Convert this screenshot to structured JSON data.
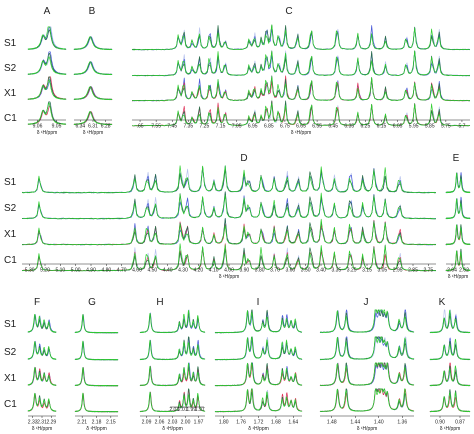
{
  "figure": {
    "panels": [
      {
        "id": "A",
        "ticks": [
          "9.06",
          "9.05"
        ],
        "xlabel": "δ ¹H/ppm"
      },
      {
        "id": "B",
        "ticks": [
          "6.34",
          "6.31",
          "6.28"
        ],
        "xlabel": "δ ¹H/ppm"
      },
      {
        "id": "C",
        "ticks": [
          ".65",
          "7.55",
          "7.45",
          "7.35",
          "7.25",
          "7.15",
          "7.05",
          "6.95",
          "6.85",
          "6.75",
          "6.65",
          "6.55",
          "6.45",
          "6.35",
          "6.25",
          "6.15",
          "6.05",
          "5.95",
          "5.85",
          "5.75",
          "5.7"
        ],
        "xlabel": "δ ¹H/ppm"
      },
      {
        "id": "D",
        "ticks": [
          "5.30",
          "5.20",
          "5.10",
          "5.00",
          "4.90",
          "4.80",
          "4.70",
          "4.60",
          "4.50",
          "4.40",
          "4.30",
          "4.20",
          "4.10",
          "4.00",
          "3.90",
          "3.80",
          "3.70",
          "3.60",
          "3.50",
          "3.40",
          "3.35",
          "3.25",
          "3.15",
          "3.05",
          "2.95",
          "2.85",
          "2.75"
        ],
        "xlabel": "δ ¹H/ppm"
      },
      {
        "id": "E",
        "ticks": [
          "2.64",
          "2.62"
        ],
        "xlabel": "δ ¹H/ppm"
      },
      {
        "id": "F",
        "ticks": [
          "2.33",
          "2.31",
          "2.29"
        ],
        "xlabel": "δ ¹H/ppm"
      },
      {
        "id": "G",
        "ticks": [
          "2.21",
          "2.18",
          "2.15"
        ],
        "xlabel": "δ ¹H/ppm"
      },
      {
        "id": "H",
        "ticks": [
          "2.09",
          "2.06",
          "2.03",
          "2.00",
          "1.97"
        ],
        "xlabel": "δ ¹H/ppm",
        "inset_ticks": [
          "2.03",
          "2.01",
          "1.99",
          "1.97"
        ]
      },
      {
        "id": "I",
        "ticks": [
          "1.80",
          "1.76",
          "1.72",
          "1.68",
          "1.64"
        ],
        "xlabel": "δ ¹H/ppm"
      },
      {
        "id": "J",
        "ticks": [
          "1.48",
          "1.44",
          "1.40",
          "1.36"
        ],
        "xlabel": "δ ¹H/ppm"
      },
      {
        "id": "K",
        "ticks": [
          "0.90",
          "0.87"
        ],
        "xlabel": "δ ¹H/ppm"
      }
    ],
    "row_labels": {
      "top": [
        "S1",
        "S2",
        "X1",
        "C1"
      ],
      "middle": [
        "S1",
        "S2",
        "X1",
        "C1"
      ],
      "bottom": [
        "S1",
        "S2",
        "X1",
        "C1"
      ]
    }
  },
  "chart_data": {
    "type": "line",
    "description_series": [
      "S1",
      "S2",
      "X1",
      "C1"
    ],
    "colors": {
      "green": "#2fcf2f",
      "dark": "#2a6e4a",
      "blue": "#4a5ad8",
      "red": "#e0345a",
      "lightblue": "#b8c4ee"
    },
    "panels": [
      {
        "id": "A",
        "x_range": [
          9.07,
          9.04
        ],
        "peaks": [
          9.058,
          9.053
        ],
        "width": 0.0018
      },
      {
        "id": "B",
        "x_range": [
          6.35,
          6.27
        ],
        "peaks": [
          6.315
        ],
        "width": 0.006
      },
      {
        "id": "C",
        "x_range": [
          7.66,
          5.7
        ],
        "peaks": [
          7.39,
          7.36,
          7.31,
          7.27,
          7.21,
          7.16,
          7.12,
          6.98,
          6.95,
          6.91,
          6.88,
          6.85,
          6.81,
          6.77,
          6.7,
          6.62,
          6.47,
          6.35,
          6.27,
          6.19,
          6.07,
          6.02,
          5.92,
          5.88
        ],
        "width": 0.006
      },
      {
        "id": "D",
        "x_range": [
          5.33,
          2.72
        ],
        "peaks": [
          5.22,
          4.62,
          4.54,
          4.49,
          4.33,
          4.29,
          4.19,
          4.12,
          4.05,
          3.93,
          3.9,
          3.82,
          3.74,
          3.66,
          3.59,
          3.51,
          3.44,
          3.36,
          3.26,
          3.18,
          3.11,
          3.04,
          2.95
        ],
        "width": 0.007
      },
      {
        "id": "E",
        "x_range": [
          2.65,
          2.61
        ],
        "peaks": [
          2.632,
          2.625
        ],
        "width": 0.0015
      },
      {
        "id": "F",
        "x_range": [
          2.34,
          2.28
        ],
        "peaks": [
          2.325,
          2.315,
          2.305,
          2.295
        ],
        "width": 0.0025
      },
      {
        "id": "G",
        "x_range": [
          2.22,
          2.14
        ],
        "peaks": [
          2.205
        ],
        "width": 0.0018
      },
      {
        "id": "H",
        "x_range": [
          2.1,
          1.96
        ],
        "peaks": [
          2.078,
          2.015,
          2.005,
          1.995,
          1.985,
          1.975
        ],
        "width": 0.0022
      },
      {
        "id": "I",
        "x_range": [
          1.82,
          1.62
        ],
        "peaks": [
          1.745,
          1.735,
          1.71,
          1.7,
          1.665,
          1.655,
          1.645,
          1.635
        ],
        "width": 0.0025
      },
      {
        "id": "J",
        "x_range": [
          1.5,
          1.34
        ],
        "peaks": [
          1.47,
          1.455,
          1.405,
          1.4,
          1.395,
          1.39,
          1.385,
          1.365,
          1.355
        ],
        "width": 0.0022
      },
      {
        "id": "K",
        "x_range": [
          0.92,
          0.85
        ],
        "peaks": [
          0.895,
          0.885,
          0.875
        ],
        "width": 0.002
      }
    ]
  }
}
